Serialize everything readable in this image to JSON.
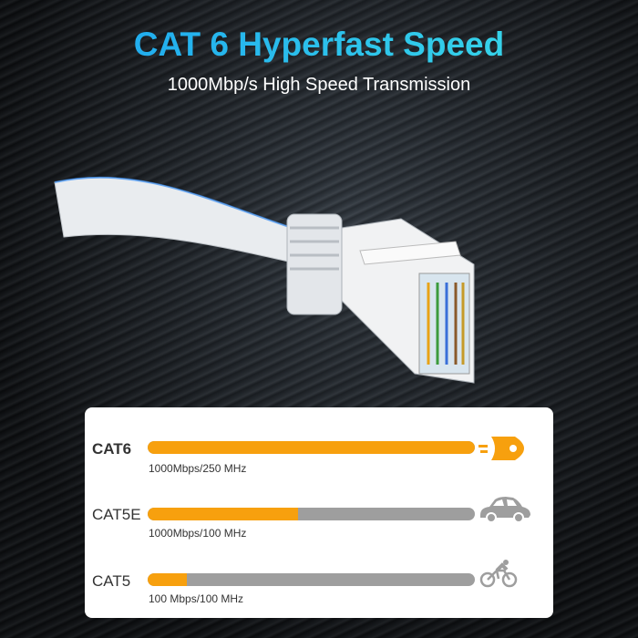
{
  "header": {
    "title": "CAT 6 Hyperfast Speed",
    "subtitle": "1000Mbp/s High Speed Transmission"
  },
  "colors": {
    "accent": "#f7a00e",
    "bar_track": "#9e9e9e",
    "title_start": "#1aa0f0",
    "title_end": "#3de0e8"
  },
  "comparison": [
    {
      "label": "CAT6",
      "spec": "1000Mbps/250 MHz",
      "level_percent": 100,
      "icon": "rocket-icon"
    },
    {
      "label": "CAT5E",
      "spec": "1000Mbps/100 MHz",
      "level_percent": 46,
      "icon": "car-icon"
    },
    {
      "label": "CAT5",
      "spec": "100 Mbps/100 MHz",
      "level_percent": 12,
      "icon": "bicycle-icon"
    }
  ]
}
